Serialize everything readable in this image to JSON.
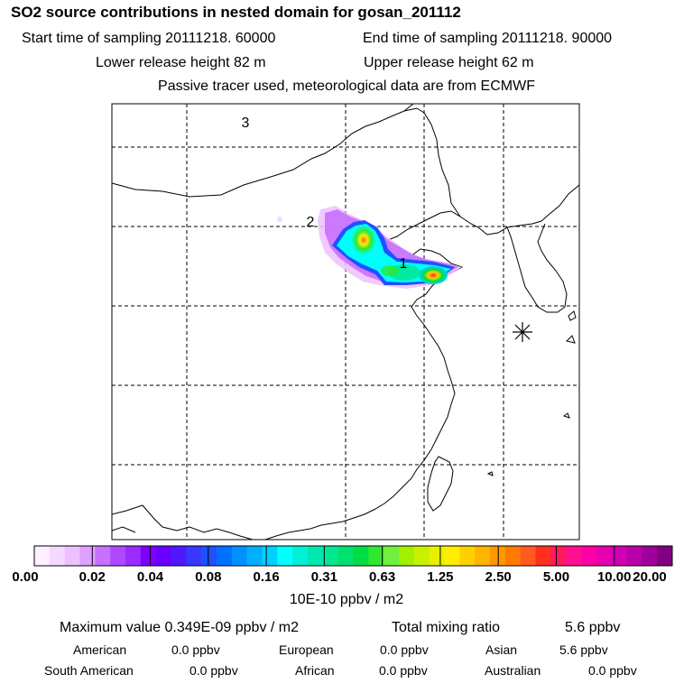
{
  "header": {
    "title": "SO2 source contributions in nested domain for gosan_201112",
    "start_label": "Start time of sampling 20111218. 60000",
    "end_label": "End time of sampling 20111218. 90000",
    "lower_label": "Lower release height   82 m",
    "upper_label": "Upper release height   62 m",
    "note": "Passive tracer used, meteorological data are from ECMWF"
  },
  "map": {
    "markers": [
      {
        "label": "3"
      },
      {
        "label": "2"
      },
      {
        "label": "1"
      }
    ],
    "receptor_symbol": "asterisk-marker"
  },
  "colorbar": {
    "tick_labels": [
      "0.00",
      "0.02",
      "0.04",
      "0.08",
      "0.16",
      "0.31",
      "0.63",
      "1.25",
      "2.50",
      "5.00",
      "10.00",
      "20.00"
    ],
    "colors": [
      "#fff0ff",
      "#f5d8ff",
      "#eec0ff",
      "#e0a0ff",
      "#c870ff",
      "#b048ff",
      "#9a2cff",
      "#8000ff",
      "#6a00ff",
      "#4d1aff",
      "#3838ff",
      "#2050ff",
      "#0070ff",
      "#0090ff",
      "#00b0ff",
      "#00d0ff",
      "#00ffff",
      "#00f0d8",
      "#00e8b0",
      "#00e890",
      "#00e070",
      "#00dd44",
      "#30e830",
      "#70f040",
      "#a0f000",
      "#c8f000",
      "#e8f000",
      "#ffee00",
      "#ffd000",
      "#ffb400",
      "#ff9800",
      "#ff7a00",
      "#ff5a20",
      "#ff3020",
      "#ff1a60",
      "#ff1090",
      "#ff00a8",
      "#e800b0",
      "#d000b4",
      "#b800a8",
      "#a0009a",
      "#800080"
    ],
    "units": "10E-10 ppbv / m2"
  },
  "summary": {
    "max_label": "Maximum value  0.349E-09 ppbv / m2",
    "total_label": "Total mixing ratio",
    "total_value": "5.6 ppbv"
  },
  "regions": [
    {
      "name": "American",
      "value": "0.0 ppbv"
    },
    {
      "name": "European",
      "value": "0.0 ppbv"
    },
    {
      "name": "Asian",
      "value": "5.6 ppbv"
    },
    {
      "name": "South American",
      "value": "0.0 ppbv"
    },
    {
      "name": "African",
      "value": "0.0 ppbv"
    },
    {
      "name": "Australian",
      "value": "0.0 ppbv"
    }
  ]
}
